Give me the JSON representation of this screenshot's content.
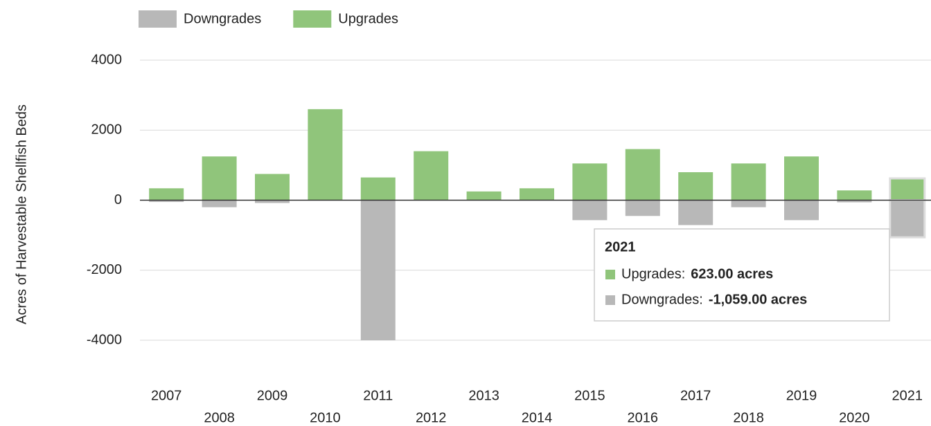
{
  "chart_data": {
    "type": "bar",
    "y_label": "Acres of Harvestable Shellfish Beds",
    "categories": [
      "2007",
      "2008",
      "2009",
      "2010",
      "2011",
      "2012",
      "2013",
      "2014",
      "2015",
      "2016",
      "2017",
      "2018",
      "2019",
      "2020",
      "2021"
    ],
    "series": [
      {
        "name": "Downgrades",
        "color": "#b8b8b8",
        "values": [
          -50,
          -200,
          -80,
          0,
          -4000,
          0,
          0,
          0,
          -570,
          -450,
          -710,
          -200,
          -570,
          -60,
          -1059
        ]
      },
      {
        "name": "Upgrades",
        "color": "#90c57b",
        "values": [
          340,
          1250,
          750,
          2600,
          650,
          1400,
          250,
          340,
          1050,
          1460,
          800,
          1050,
          1250,
          280,
          623
        ]
      }
    ],
    "ylim": [
      -4000,
      4000
    ],
    "yticks": [
      4000,
      2000,
      0,
      -2000,
      -4000
    ],
    "grid": true,
    "tooltip": {
      "title": "2021",
      "items": [
        {
          "series": 1,
          "label": "Upgrades:",
          "text": "623.00 acres"
        },
        {
          "series": 0,
          "label": "Downgrades:",
          "text": "-1,059.00 acres"
        }
      ]
    }
  }
}
